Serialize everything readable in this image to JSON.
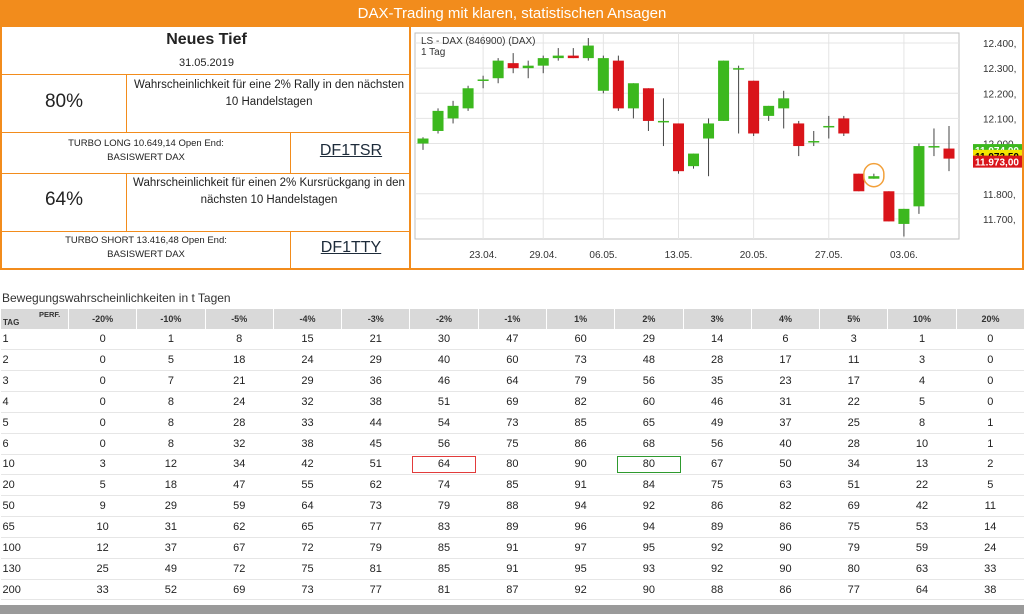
{
  "header": {
    "title": "DAX-Trading mit klaren, statistischen Ansagen"
  },
  "signal": {
    "title": "Neues Tief",
    "date": "31.05.2019",
    "long": {
      "probability": "80%",
      "description_line1": "Wahrscheinlichkeit für eine 2% Rally in den nächsten",
      "description_line2": "10 Handelstagen",
      "turbo_line1": "TURBO LONG 10.649,14 Open End:",
      "turbo_line2": "BASISWERT DAX",
      "code": "DF1TSR"
    },
    "short": {
      "probability": "64%",
      "description_line1": "Wahrscheinlichkeit für einen 2% Kursrückgang in den",
      "description_line2": "nächsten 10 Handelstagen",
      "turbo_line1": "TURBO SHORT 13.416,48 Open End:",
      "turbo_line2": "BASISWERT DAX",
      "code": "DF1TTY"
    }
  },
  "colors": {
    "accent": "#f28c1c",
    "up": "#3cb81e",
    "down": "#d9141a"
  },
  "chart_data": {
    "type": "candlestick",
    "title": "LS - DAX (846900) (DAX)",
    "subtitle": "1 Tag",
    "ylim": [
      11620,
      12440
    ],
    "y_ticks": [
      12400,
      12300,
      12200,
      12100,
      12000,
      11800,
      11700
    ],
    "y_tick_labels": [
      "12.400,",
      "12.300,",
      "12.200,",
      "12.100,",
      "12.000,",
      "11.800,",
      "11.700,"
    ],
    "x_tick_labels": [
      {
        "label": "23.04.",
        "index": 4
      },
      {
        "label": "29.04.",
        "index": 8
      },
      {
        "label": "06.05.",
        "index": 12
      },
      {
        "label": "13.05.",
        "index": 17
      },
      {
        "label": "20.05.",
        "index": 22
      },
      {
        "label": "27.05.",
        "index": 27
      },
      {
        "label": "03.06.",
        "index": 32
      }
    ],
    "price_labels": [
      {
        "text": "11.974,00",
        "value": 11974,
        "color": "#3cb81e"
      },
      {
        "text": "11.973,50",
        "value": 11951,
        "color": "#f2e600"
      },
      {
        "text": "11.973,00",
        "value": 11928,
        "color": "#d9141a"
      }
    ],
    "highlight_index": 30,
    "candles": [
      {
        "open": 12000,
        "high": 12025,
        "low": 11975,
        "close": 12020
      },
      {
        "open": 12050,
        "high": 12140,
        "low": 12040,
        "close": 12130
      },
      {
        "open": 12100,
        "high": 12170,
        "low": 12080,
        "close": 12150
      },
      {
        "open": 12140,
        "high": 12230,
        "low": 12130,
        "close": 12220
      },
      {
        "open": 12250,
        "high": 12270,
        "low": 12220,
        "close": 12255
      },
      {
        "open": 12260,
        "high": 12340,
        "low": 12240,
        "close": 12330
      },
      {
        "open": 12320,
        "high": 12360,
        "low": 12280,
        "close": 12300
      },
      {
        "open": 12300,
        "high": 12330,
        "low": 12260,
        "close": 12310
      },
      {
        "open": 12310,
        "high": 12350,
        "low": 12280,
        "close": 12340
      },
      {
        "open": 12340,
        "high": 12380,
        "low": 12330,
        "close": 12350
      },
      {
        "open": 12350,
        "high": 12380,
        "low": 12340,
        "close": 12340
      },
      {
        "open": 12340,
        "high": 12420,
        "low": 12330,
        "close": 12390
      },
      {
        "open": 12210,
        "high": 12350,
        "low": 12200,
        "close": 12340
      },
      {
        "open": 12330,
        "high": 12350,
        "low": 12130,
        "close": 12140
      },
      {
        "open": 12140,
        "high": 12240,
        "low": 12100,
        "close": 12240
      },
      {
        "open": 12220,
        "high": 12220,
        "low": 12050,
        "close": 12090
      },
      {
        "open": 12090,
        "high": 12180,
        "low": 11990,
        "close": 12090
      },
      {
        "open": 12080,
        "high": 12080,
        "low": 11880,
        "close": 11890
      },
      {
        "open": 11910,
        "high": 11960,
        "low": 11900,
        "close": 11960
      },
      {
        "open": 12020,
        "high": 12100,
        "low": 11870,
        "close": 12080
      },
      {
        "open": 12090,
        "high": 12330,
        "low": 12090,
        "close": 12330
      },
      {
        "open": 12300,
        "high": 12310,
        "low": 12040,
        "close": 12300
      },
      {
        "open": 12250,
        "high": 12250,
        "low": 12030,
        "close": 12040
      },
      {
        "open": 12110,
        "high": 12150,
        "low": 12090,
        "close": 12150
      },
      {
        "open": 12140,
        "high": 12210,
        "low": 12060,
        "close": 12180
      },
      {
        "open": 12080,
        "high": 12090,
        "low": 11950,
        "close": 11990
      },
      {
        "open": 12010,
        "high": 12050,
        "low": 11990,
        "close": 12010
      },
      {
        "open": 12070,
        "high": 12110,
        "low": 12020,
        "close": 12070
      },
      {
        "open": 12100,
        "high": 12110,
        "low": 12030,
        "close": 12040
      },
      {
        "open": 11880,
        "high": 11880,
        "low": 11810,
        "close": 11810
      },
      {
        "open": 11860,
        "high": 11880,
        "low": 11860,
        "close": 11870
      },
      {
        "open": 11810,
        "high": 11810,
        "low": 11690,
        "close": 11690
      },
      {
        "open": 11680,
        "high": 11740,
        "low": 11630,
        "close": 11740
      },
      {
        "open": 11750,
        "high": 12000,
        "low": 11720,
        "close": 11990
      },
      {
        "open": 11990,
        "high": 12060,
        "low": 11950,
        "close": 11990
      },
      {
        "open": 11980,
        "high": 12070,
        "low": 11890,
        "close": 11940
      }
    ]
  },
  "table": {
    "heading": "Bewegungswahrscheinlichkeiten in t Tagen",
    "perf_label": "PERF.",
    "tag_label": "TAG",
    "columns": [
      "-20%",
      "-10%",
      "-5%",
      "-4%",
      "-3%",
      "-2%",
      "-1%",
      "1%",
      "2%",
      "3%",
      "4%",
      "5%",
      "10%",
      "20%"
    ],
    "rows": [
      {
        "tag": "1",
        "values": [
          "0",
          "1",
          "8",
          "15",
          "21",
          "30",
          "47",
          "60",
          "29",
          "14",
          "6",
          "3",
          "1",
          "0"
        ]
      },
      {
        "tag": "2",
        "values": [
          "0",
          "5",
          "18",
          "24",
          "29",
          "40",
          "60",
          "73",
          "48",
          "28",
          "17",
          "11",
          "3",
          "0"
        ]
      },
      {
        "tag": "3",
        "values": [
          "0",
          "7",
          "21",
          "29",
          "36",
          "46",
          "64",
          "79",
          "56",
          "35",
          "23",
          "17",
          "4",
          "0"
        ]
      },
      {
        "tag": "4",
        "values": [
          "0",
          "8",
          "24",
          "32",
          "38",
          "51",
          "69",
          "82",
          "60",
          "46",
          "31",
          "22",
          "5",
          "0"
        ]
      },
      {
        "tag": "5",
        "values": [
          "0",
          "8",
          "28",
          "33",
          "44",
          "54",
          "73",
          "85",
          "65",
          "49",
          "37",
          "25",
          "8",
          "1"
        ]
      },
      {
        "tag": "6",
        "values": [
          "0",
          "8",
          "32",
          "38",
          "45",
          "56",
          "75",
          "86",
          "68",
          "56",
          "40",
          "28",
          "10",
          "1"
        ]
      },
      {
        "tag": "10",
        "values": [
          "3",
          "12",
          "34",
          "42",
          "51",
          "64",
          "80",
          "90",
          "80",
          "67",
          "50",
          "34",
          "13",
          "2"
        ]
      },
      {
        "tag": "20",
        "values": [
          "5",
          "18",
          "47",
          "55",
          "62",
          "74",
          "85",
          "91",
          "84",
          "75",
          "63",
          "51",
          "22",
          "5"
        ]
      },
      {
        "tag": "50",
        "values": [
          "9",
          "29",
          "59",
          "64",
          "73",
          "79",
          "88",
          "94",
          "92",
          "86",
          "82",
          "69",
          "42",
          "11"
        ]
      },
      {
        "tag": "65",
        "values": [
          "10",
          "31",
          "62",
          "65",
          "77",
          "83",
          "89",
          "96",
          "94",
          "89",
          "86",
          "75",
          "53",
          "14"
        ]
      },
      {
        "tag": "100",
        "values": [
          "12",
          "37",
          "67",
          "72",
          "79",
          "85",
          "91",
          "97",
          "95",
          "92",
          "90",
          "79",
          "59",
          "24"
        ]
      },
      {
        "tag": "130",
        "values": [
          "25",
          "49",
          "72",
          "75",
          "81",
          "85",
          "91",
          "95",
          "93",
          "92",
          "90",
          "80",
          "63",
          "33"
        ]
      },
      {
        "tag": "200",
        "values": [
          "33",
          "52",
          "69",
          "73",
          "77",
          "81",
          "87",
          "92",
          "90",
          "88",
          "86",
          "77",
          "64",
          "38"
        ]
      }
    ],
    "highlights": [
      {
        "row": 6,
        "col": 5,
        "color": "red"
      },
      {
        "row": 6,
        "col": 8,
        "color": "green"
      }
    ]
  }
}
